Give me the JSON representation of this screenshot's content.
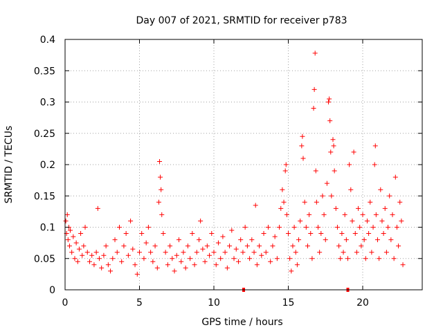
{
  "chart_data": {
    "type": "scatter",
    "title": "Day 007 of 2021, SRMTID for receiver p783",
    "xlabel": "GPS time / hours",
    "ylabel": "SRMTID / TECUs",
    "xlim": [
      0,
      24
    ],
    "ylim": [
      0,
      0.4
    ],
    "grid": true,
    "x_ticks": [
      0,
      5,
      10,
      15,
      20
    ],
    "x_tick_labels": [
      "0",
      "5",
      "10",
      "15",
      "20"
    ],
    "y_ticks": [
      0,
      0.05,
      0.1,
      0.15,
      0.2,
      0.25,
      0.3,
      0.35,
      0.4
    ],
    "y_tick_labels": [
      "0",
      "0.05",
      "0.1",
      "0.15",
      "0.2",
      "0.25",
      "0.3",
      "0.35",
      "0.4"
    ],
    "marker": "plus",
    "series_color": "#ff0000",
    "points": [
      [
        0.05,
        0.11
      ],
      [
        0.1,
        0.09
      ],
      [
        0.15,
        0.12
      ],
      [
        0.2,
        0.08
      ],
      [
        0.25,
        0.1
      ],
      [
        0.3,
        0.07
      ],
      [
        0.35,
        0.095
      ],
      [
        0.45,
        0.06
      ],
      [
        0.55,
        0.085
      ],
      [
        0.65,
        0.05
      ],
      [
        0.75,
        0.075
      ],
      [
        0.85,
        0.045
      ],
      [
        0.95,
        0.065
      ],
      [
        1.05,
        0.09
      ],
      [
        1.15,
        0.055
      ],
      [
        1.25,
        0.07
      ],
      [
        1.35,
        0.1
      ],
      [
        1.5,
        0.06
      ],
      [
        1.65,
        0.045
      ],
      [
        1.8,
        0.055
      ],
      [
        1.95,
        0.04
      ],
      [
        2.1,
        0.06
      ],
      [
        2.2,
        0.13
      ],
      [
        2.3,
        0.05
      ],
      [
        2.45,
        0.035
      ],
      [
        2.6,
        0.055
      ],
      [
        2.75,
        0.07
      ],
      [
        2.9,
        0.04
      ],
      [
        3.05,
        0.03
      ],
      [
        3.2,
        0.05
      ],
      [
        3.35,
        0.08
      ],
      [
        3.5,
        0.06
      ],
      [
        3.65,
        0.1
      ],
      [
        3.8,
        0.045
      ],
      [
        3.95,
        0.07
      ],
      [
        4.1,
        0.09
      ],
      [
        4.25,
        0.055
      ],
      [
        4.4,
        0.11
      ],
      [
        4.55,
        0.065
      ],
      [
        4.7,
        0.04
      ],
      [
        4.85,
        0.025
      ],
      [
        5.0,
        0.06
      ],
      [
        5.15,
        0.09
      ],
      [
        5.3,
        0.05
      ],
      [
        5.45,
        0.075
      ],
      [
        5.6,
        0.1
      ],
      [
        5.75,
        0.06
      ],
      [
        5.9,
        0.045
      ],
      [
        6.05,
        0.07
      ],
      [
        6.2,
        0.035
      ],
      [
        6.3,
        0.14
      ],
      [
        6.35,
        0.205
      ],
      [
        6.4,
        0.18
      ],
      [
        6.45,
        0.16
      ],
      [
        6.5,
        0.12
      ],
      [
        6.6,
        0.09
      ],
      [
        6.75,
        0.06
      ],
      [
        6.9,
        0.04
      ],
      [
        7.05,
        0.07
      ],
      [
        7.2,
        0.05
      ],
      [
        7.35,
        0.03
      ],
      [
        7.5,
        0.055
      ],
      [
        7.65,
        0.08
      ],
      [
        7.8,
        0.045
      ],
      [
        7.95,
        0.06
      ],
      [
        8.1,
        0.035
      ],
      [
        8.25,
        0.07
      ],
      [
        8.4,
        0.05
      ],
      [
        8.55,
        0.09
      ],
      [
        8.7,
        0.04
      ],
      [
        8.85,
        0.06
      ],
      [
        9.0,
        0.08
      ],
      [
        9.1,
        0.11
      ],
      [
        9.25,
        0.065
      ],
      [
        9.4,
        0.045
      ],
      [
        9.55,
        0.07
      ],
      [
        9.7,
        0.055
      ],
      [
        9.85,
        0.09
      ],
      [
        10.0,
        0.06
      ],
      [
        10.15,
        0.04
      ],
      [
        10.3,
        0.075
      ],
      [
        10.45,
        0.05
      ],
      [
        10.6,
        0.085
      ],
      [
        10.75,
        0.06
      ],
      [
        10.9,
        0.035
      ],
      [
        11.05,
        0.07
      ],
      [
        11.2,
        0.095
      ],
      [
        11.35,
        0.05
      ],
      [
        11.5,
        0.065
      ],
      [
        11.65,
        0.045
      ],
      [
        11.8,
        0.08
      ],
      [
        11.95,
        0.06
      ],
      [
        12.1,
        0.1
      ],
      [
        12.25,
        0.07
      ],
      [
        12.4,
        0.05
      ],
      [
        12.55,
        0.08
      ],
      [
        12.7,
        0.06
      ],
      [
        12.8,
        0.135
      ],
      [
        12.9,
        0.04
      ],
      [
        13.05,
        0.07
      ],
      [
        13.2,
        0.055
      ],
      [
        13.35,
        0.09
      ],
      [
        13.5,
        0.06
      ],
      [
        13.65,
        0.1
      ],
      [
        13.8,
        0.045
      ],
      [
        13.95,
        0.07
      ],
      [
        14.1,
        0.085
      ],
      [
        14.25,
        0.05
      ],
      [
        14.4,
        0.1
      ],
      [
        14.5,
        0.13
      ],
      [
        14.6,
        0.16
      ],
      [
        14.7,
        0.14
      ],
      [
        14.8,
        0.19
      ],
      [
        14.85,
        0.2
      ],
      [
        14.9,
        0.12
      ],
      [
        15.0,
        0.09
      ],
      [
        15.1,
        0.05
      ],
      [
        15.2,
        0.03
      ],
      [
        15.3,
        0.07
      ],
      [
        15.4,
        0.1
      ],
      [
        15.5,
        0.06
      ],
      [
        15.6,
        0.04
      ],
      [
        15.7,
        0.08
      ],
      [
        15.8,
        0.11
      ],
      [
        15.9,
        0.23
      ],
      [
        15.95,
        0.245
      ],
      [
        16.0,
        0.21
      ],
      [
        16.1,
        0.14
      ],
      [
        16.2,
        0.1
      ],
      [
        16.3,
        0.07
      ],
      [
        16.4,
        0.12
      ],
      [
        16.5,
        0.09
      ],
      [
        16.6,
        0.05
      ],
      [
        16.7,
        0.29
      ],
      [
        16.75,
        0.32
      ],
      [
        16.8,
        0.378
      ],
      [
        16.85,
        0.19
      ],
      [
        16.9,
        0.14
      ],
      [
        17.0,
        0.1
      ],
      [
        17.1,
        0.06
      ],
      [
        17.2,
        0.09
      ],
      [
        17.3,
        0.15
      ],
      [
        17.4,
        0.12
      ],
      [
        17.5,
        0.08
      ],
      [
        17.6,
        0.17
      ],
      [
        17.7,
        0.3
      ],
      [
        17.75,
        0.305
      ],
      [
        17.8,
        0.27
      ],
      [
        17.85,
        0.22
      ],
      [
        17.9,
        0.15
      ],
      [
        18.0,
        0.24
      ],
      [
        18.05,
        0.23
      ],
      [
        18.1,
        0.19
      ],
      [
        18.2,
        0.13
      ],
      [
        18.3,
        0.1
      ],
      [
        18.4,
        0.07
      ],
      [
        18.5,
        0.05
      ],
      [
        18.6,
        0.09
      ],
      [
        18.7,
        0.06
      ],
      [
        18.8,
        0.12
      ],
      [
        18.9,
        0.08
      ],
      [
        19.0,
        0.05
      ],
      [
        19.1,
        0.2
      ],
      [
        19.2,
        0.16
      ],
      [
        19.3,
        0.11
      ],
      [
        19.4,
        0.22
      ],
      [
        19.5,
        0.09
      ],
      [
        19.6,
        0.06
      ],
      [
        19.7,
        0.13
      ],
      [
        19.8,
        0.1
      ],
      [
        19.9,
        0.07
      ],
      [
        20.0,
        0.12
      ],
      [
        20.1,
        0.08
      ],
      [
        20.2,
        0.05
      ],
      [
        20.3,
        0.11
      ],
      [
        20.4,
        0.09
      ],
      [
        20.5,
        0.14
      ],
      [
        20.6,
        0.06
      ],
      [
        20.7,
        0.1
      ],
      [
        20.8,
        0.2
      ],
      [
        20.85,
        0.23
      ],
      [
        20.9,
        0.12
      ],
      [
        21.0,
        0.08
      ],
      [
        21.1,
        0.05
      ],
      [
        21.2,
        0.16
      ],
      [
        21.3,
        0.11
      ],
      [
        21.4,
        0.09
      ],
      [
        21.5,
        0.13
      ],
      [
        21.6,
        0.06
      ],
      [
        21.7,
        0.1
      ],
      [
        21.8,
        0.15
      ],
      [
        21.9,
        0.08
      ],
      [
        22.0,
        0.12
      ],
      [
        22.1,
        0.05
      ],
      [
        22.2,
        0.18
      ],
      [
        22.3,
        0.1
      ],
      [
        22.4,
        0.07
      ],
      [
        22.5,
        0.14
      ],
      [
        22.6,
        0.11
      ],
      [
        22.7,
        0.04
      ]
    ],
    "axis_markers_x": [
      12.0,
      19.0
    ]
  }
}
